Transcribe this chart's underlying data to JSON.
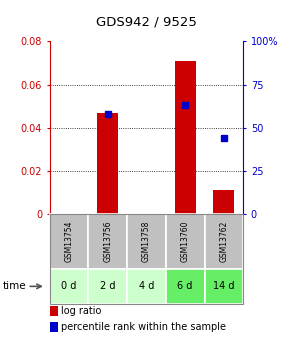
{
  "title": "GDS942 / 9525",
  "categories": [
    "GSM13754",
    "GSM13756",
    "GSM13758",
    "GSM13760",
    "GSM13762"
  ],
  "time_labels": [
    "0 d",
    "2 d",
    "4 d",
    "6 d",
    "14 d"
  ],
  "log_ratios": [
    0.0,
    0.047,
    0.0,
    0.071,
    0.011
  ],
  "percentile_ranks": [
    null,
    58,
    null,
    63,
    44
  ],
  "bar_color": "#cc0000",
  "dot_color": "#0000cc",
  "left_ylim": [
    0,
    0.08
  ],
  "right_ylim": [
    0,
    100
  ],
  "left_yticks": [
    0,
    0.02,
    0.04,
    0.06,
    0.08
  ],
  "right_yticks": [
    0,
    25,
    50,
    75,
    100
  ],
  "left_yticklabels": [
    "0",
    "0.02",
    "0.04",
    "0.06",
    "0.08"
  ],
  "right_yticklabels": [
    "0",
    "25",
    "50",
    "75",
    "100%"
  ],
  "grid_values": [
    0.02,
    0.04,
    0.06
  ],
  "cell_bg_gray": "#c0c0c0",
  "time_row_colors": [
    "#ccffcc",
    "#ccffcc",
    "#ccffcc",
    "#66ee66",
    "#66ee66"
  ],
  "bar_width": 0.55
}
